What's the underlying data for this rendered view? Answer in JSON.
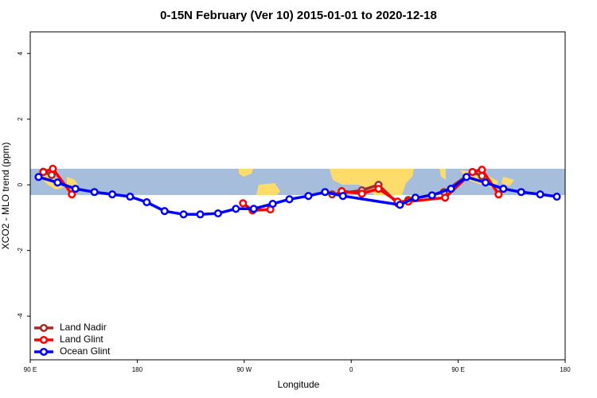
{
  "chart_data": {
    "type": "line",
    "title": "0-15N February (Ver 10)   2015-01-01 to 2020-12-18",
    "x_label": "Longitude",
    "y_label": "XCO2 - MLO trend (ppm)",
    "xlim": [
      90,
      540
    ],
    "ylim": [
      -5.33,
      4.66
    ],
    "xticks": [
      {
        "value": 90,
        "label": "90 E"
      },
      180,
      {
        "value": 270,
        "label": "90 W"
      },
      {
        "value": 360,
        "label": "0"
      },
      {
        "value": 450,
        "label": "90 E"
      },
      {
        "value": 540,
        "label": "180"
      }
    ],
    "yticks": [
      -4,
      -2,
      0,
      2,
      4
    ],
    "legend": "bottom-left",
    "series": [
      {
        "name": "Land Nadir",
        "color": "#a52a2a",
        "x": [
          101,
          108,
          null,
          344,
          369,
          383,
          399,
          408,
          438,
          462,
          470
        ],
        "values": [
          0.4,
          0.3,
          null,
          -0.29,
          -0.17,
          0,
          -0.56,
          -0.46,
          -0.22,
          0.39,
          0.27
        ]
      },
      {
        "name": "Land Glint",
        "color": "#ff0000",
        "x": [
          101,
          109,
          125,
          null,
          269,
          277,
          292,
          null,
          352,
          369,
          383,
          399,
          408,
          439,
          462,
          470,
          484
        ],
        "values": [
          0.39,
          0.49,
          -0.29,
          null,
          -0.56,
          -0.78,
          -0.75,
          null,
          -0.19,
          -0.27,
          -0.12,
          -0.51,
          -0.51,
          -0.39,
          0.39,
          0.46,
          -0.29
        ]
      },
      {
        "name": "Ocean Glint",
        "color": "#0000ff",
        "x": [
          97,
          113,
          128,
          144,
          159,
          174,
          188,
          203,
          219,
          233,
          248,
          263,
          278,
          294,
          308,
          324,
          338,
          353,
          401,
          414,
          428,
          444,
          457,
          473,
          488,
          503,
          519,
          533
        ],
        "values": [
          0.24,
          0.07,
          -0.12,
          -0.22,
          -0.29,
          -0.36,
          -0.53,
          -0.8,
          -0.9,
          -0.9,
          -0.87,
          -0.73,
          -0.73,
          -0.58,
          -0.44,
          -0.34,
          -0.22,
          -0.34,
          -0.61,
          -0.39,
          -0.32,
          -0.12,
          0.24,
          0.07,
          -0.12,
          -0.22,
          -0.29,
          -0.36
        ]
      }
    ]
  }
}
